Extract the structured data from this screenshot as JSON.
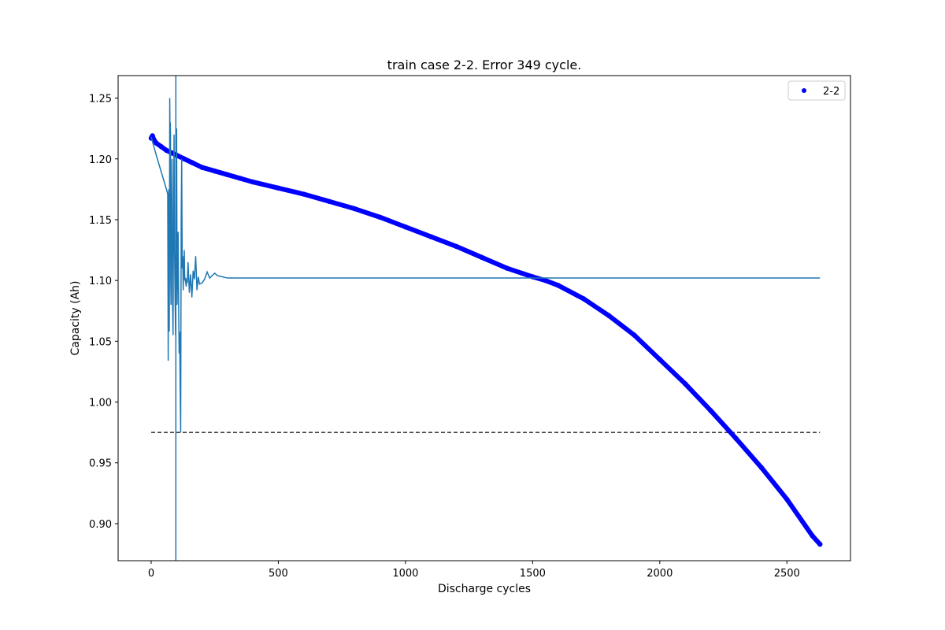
{
  "chart_data": {
    "type": "scatter",
    "title": "train case 2-2. Error 349 cycle.",
    "xlabel": "Discharge cycles",
    "ylabel": "Capacity (Ah)",
    "xlim": [
      -130,
      2750
    ],
    "ylim": [
      0.8695,
      1.2685
    ],
    "xticks": [
      0,
      500,
      1000,
      1500,
      2000,
      2500
    ],
    "yticks": [
      0.9,
      0.95,
      1.0,
      1.05,
      1.1,
      1.15,
      1.2,
      1.25
    ],
    "xtick_labels": [
      "0",
      "500",
      "1000",
      "1500",
      "2000",
      "2500"
    ],
    "ytick_labels": [
      "0.90",
      "0.95",
      "1.00",
      "1.05",
      "1.10",
      "1.15",
      "1.20",
      "1.25"
    ],
    "legend": {
      "position": "top-right",
      "entries": [
        "2-2"
      ]
    },
    "grid": false,
    "series": [
      {
        "name": "2-2",
        "kind": "scatter",
        "color": "#0000ff",
        "x": [
          0,
          5,
          10,
          20,
          40,
          60,
          80,
          100,
          130,
          160,
          200,
          250,
          300,
          350,
          400,
          500,
          600,
          700,
          800,
          900,
          1000,
          1100,
          1200,
          1300,
          1400,
          1500,
          1550,
          1600,
          1700,
          1800,
          1900,
          2000,
          2100,
          2200,
          2300,
          2400,
          2500,
          2600,
          2630
        ],
        "y": [
          1.217,
          1.219,
          1.216,
          1.213,
          1.21,
          1.207,
          1.205,
          1.203,
          1.2,
          1.197,
          1.193,
          1.19,
          1.187,
          1.184,
          1.181,
          1.176,
          1.171,
          1.165,
          1.159,
          1.152,
          1.144,
          1.136,
          1.128,
          1.119,
          1.11,
          1.103,
          1.1,
          1.096,
          1.085,
          1.071,
          1.055,
          1.035,
          1.015,
          0.993,
          0.97,
          0.946,
          0.92,
          0.89,
          0.883
        ]
      },
      {
        "name": "",
        "kind": "line",
        "color": "#1f77b4",
        "x": [
          0,
          20,
          40,
          60,
          65,
          67,
          68,
          69,
          70,
          71,
          72,
          73,
          74,
          75,
          76,
          77,
          78,
          79,
          80,
          82,
          84,
          86,
          88,
          90,
          92,
          94,
          96,
          98,
          100,
          102,
          104,
          106,
          108,
          110,
          112,
          114,
          116,
          118,
          120,
          122,
          124,
          126,
          128,
          130,
          132,
          134,
          136,
          138,
          140,
          142,
          145,
          150,
          155,
          160,
          165,
          170,
          175,
          180,
          185,
          190,
          200,
          210,
          220,
          230,
          240,
          250,
          260,
          280,
          300,
          350,
          400,
          500,
          1000,
          1500,
          2000,
          2500,
          2630
        ],
        "y": [
          1.218,
          1.203,
          1.189,
          1.175,
          1.171,
          1.034,
          1.14,
          1.175,
          1.16,
          1.058,
          1.12,
          1.25,
          1.22,
          1.23,
          1.22,
          1.1,
          1.08,
          1.14,
          1.13,
          1.2,
          1.085,
          1.055,
          1.16,
          1.22,
          1.123,
          1.085,
          1.055,
          1.13,
          1.225,
          1.08,
          1.11,
          1.14,
          1.08,
          1.04,
          1.058,
          1.01,
          0.975,
          1.15,
          1.2,
          1.11,
          1.12,
          1.092,
          1.11,
          1.125,
          1.1,
          1.101,
          1.098,
          1.095,
          1.102,
          1.098,
          1.115,
          1.09,
          1.105,
          1.086,
          1.108,
          1.101,
          1.12,
          1.092,
          1.103,
          1.097,
          1.098,
          1.101,
          1.107,
          1.102,
          1.104,
          1.106,
          1.104,
          1.103,
          1.102,
          1.102,
          1.102,
          1.102,
          1.102,
          1.102,
          1.102,
          1.102,
          1.102
        ]
      }
    ],
    "reference_lines": [
      {
        "orientation": "horizontal",
        "y": 0.975,
        "x_range": [
          0,
          2630
        ],
        "style": "dashed",
        "color": "#000000"
      },
      {
        "orientation": "vertical",
        "x": 97,
        "style": "solid",
        "color": "#1f77b4"
      }
    ]
  }
}
